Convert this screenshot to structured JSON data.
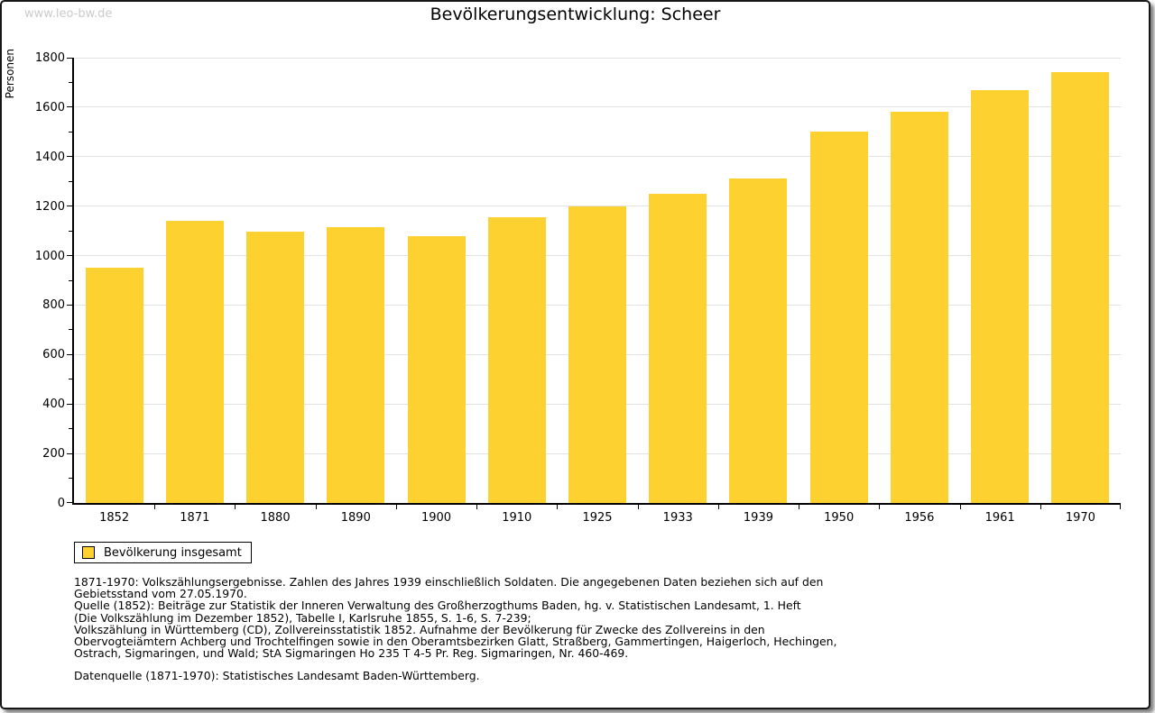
{
  "watermark": "www.leo-bw.de",
  "title": "Bevölkerungsentwicklung: Scheer",
  "colors": {
    "bar": "#FCD130",
    "grid": "#e2e2e2",
    "axis": "#000000",
    "watermark": "#cbcbcb",
    "frame_border": "#161616"
  },
  "chart_data": {
    "type": "bar",
    "title": "Bevölkerungsentwicklung: Scheer",
    "xlabel": "",
    "ylabel": "Personen",
    "categories": [
      "1852",
      "1871",
      "1880",
      "1890",
      "1900",
      "1910",
      "1925",
      "1933",
      "1939",
      "1950",
      "1956",
      "1961",
      "1970"
    ],
    "series": [
      {
        "name": "Bevölkerung insgesamt",
        "values": [
          950,
          1140,
          1095,
          1115,
          1080,
          1155,
          1200,
          1250,
          1310,
          1500,
          1580,
          1670,
          1740
        ],
        "color": "#FCD130"
      }
    ],
    "ylim": [
      0,
      1800
    ],
    "ytick_step": 200,
    "yminor_step": 100,
    "grid": true,
    "legend_position": "bottom-left"
  },
  "legend": {
    "label": "Bevölkerung insgesamt",
    "swatch_color": "#FCD130"
  },
  "footer": {
    "lines": [
      "1871-1970: Volkszählungsergebnisse. Zahlen des Jahres 1939 einschließlich Soldaten. Die angegebenen Daten beziehen sich auf den",
      "Gebietsstand vom 27.05.1970.",
      "Quelle (1852): Beiträge zur Statistik der Inneren Verwaltung des Großherzogthums Baden, hg. v. Statistischen Landesamt, 1. Heft",
      "(Die Volkszählung im Dezember 1852), Tabelle I, Karlsruhe 1855, S. 1-6, S. 7-239;",
      "Volkszählung in Württemberg (CD), Zollvereinsstatistik 1852. Aufnahme der Bevölkerung für Zwecke des Zollvereins in den",
      "Obervogteiämtern Achberg und Trochtelfingen sowie in den Oberamtsbezirken Glatt, Straßberg, Gammertingen, Haigerloch, Hechingen,",
      "Ostrach, Sigmaringen, und Wald; StA Sigmaringen Ho 235 T 4-5 Pr. Reg. Sigmaringen, Nr. 460-469."
    ],
    "datasource": "Datenquelle (1871-1970): Statistisches Landesamt Baden-Württemberg."
  }
}
